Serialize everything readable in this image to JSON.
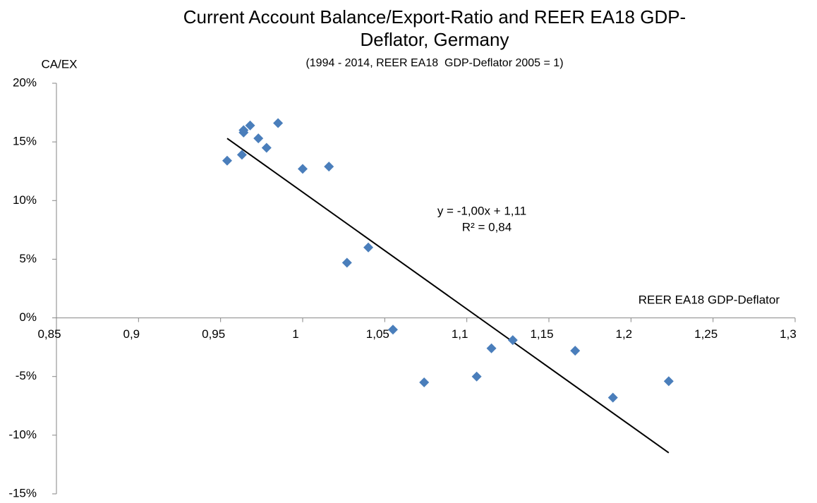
{
  "chart_data": {
    "type": "scatter",
    "title": [
      "Current Account Balance/Export-Ratio and REER EA18 GDP-",
      "Deflator, Germany"
    ],
    "subtitle": "(1994 - 2014, REER EA18  GDP-Deflator 2005 = 1)",
    "y_label": "CA/EX",
    "x_label": "REER EA18 GDP-Deflator",
    "xlim": [
      0.85,
      1.3
    ],
    "xticks": [
      {
        "value": 0.85,
        "label": "0,85"
      },
      {
        "value": 0.9,
        "label": "0,9"
      },
      {
        "value": 0.95,
        "label": "0,95"
      },
      1,
      {
        "value": 1.05,
        "label": "1,05"
      },
      {
        "value": 1.1,
        "label": "1,1"
      },
      {
        "value": 1.15,
        "label": "1,15"
      },
      {
        "value": 1.2,
        "label": "1,2"
      },
      {
        "value": 1.25,
        "label": "1,25"
      },
      {
        "value": 1.3,
        "label": "1,3"
      }
    ],
    "ylim": [
      -15,
      20
    ],
    "yticks": [
      {
        "value": -15,
        "label": "-15%"
      },
      {
        "value": -10,
        "label": "-10%"
      },
      {
        "value": -5,
        "label": "-5%"
      },
      {
        "value": 0,
        "label": "0%"
      },
      {
        "value": 5,
        "label": "5%"
      },
      {
        "value": 10,
        "label": "10%"
      },
      {
        "value": 15,
        "label": "15%"
      },
      {
        "value": 20,
        "label": "20%"
      }
    ],
    "color": "#4a7ebb",
    "x": [
      0.954,
      0.963,
      0.964,
      0.964,
      0.968,
      0.973,
      0.978,
      0.985,
      1.0,
      1.016,
      1.027,
      1.04,
      1.055,
      1.074,
      1.106,
      1.115,
      1.128,
      1.166,
      1.189,
      1.223
    ],
    "values": [
      13.4,
      13.9,
      16.0,
      15.8,
      16.4,
      15.3,
      14.5,
      16.6,
      12.7,
      12.9,
      4.7,
      6.0,
      -1.0,
      -5.5,
      -5.0,
      -2.6,
      -1.9,
      -2.8,
      -6.8,
      -5.4
    ],
    "trendline": {
      "x": [
        0.954,
        1.223
      ],
      "values": [
        15.3,
        -11.5
      ],
      "color": "#000000",
      "equation": "y = -1,00x + 1,11",
      "r_squared": "R² = 0,84"
    }
  }
}
